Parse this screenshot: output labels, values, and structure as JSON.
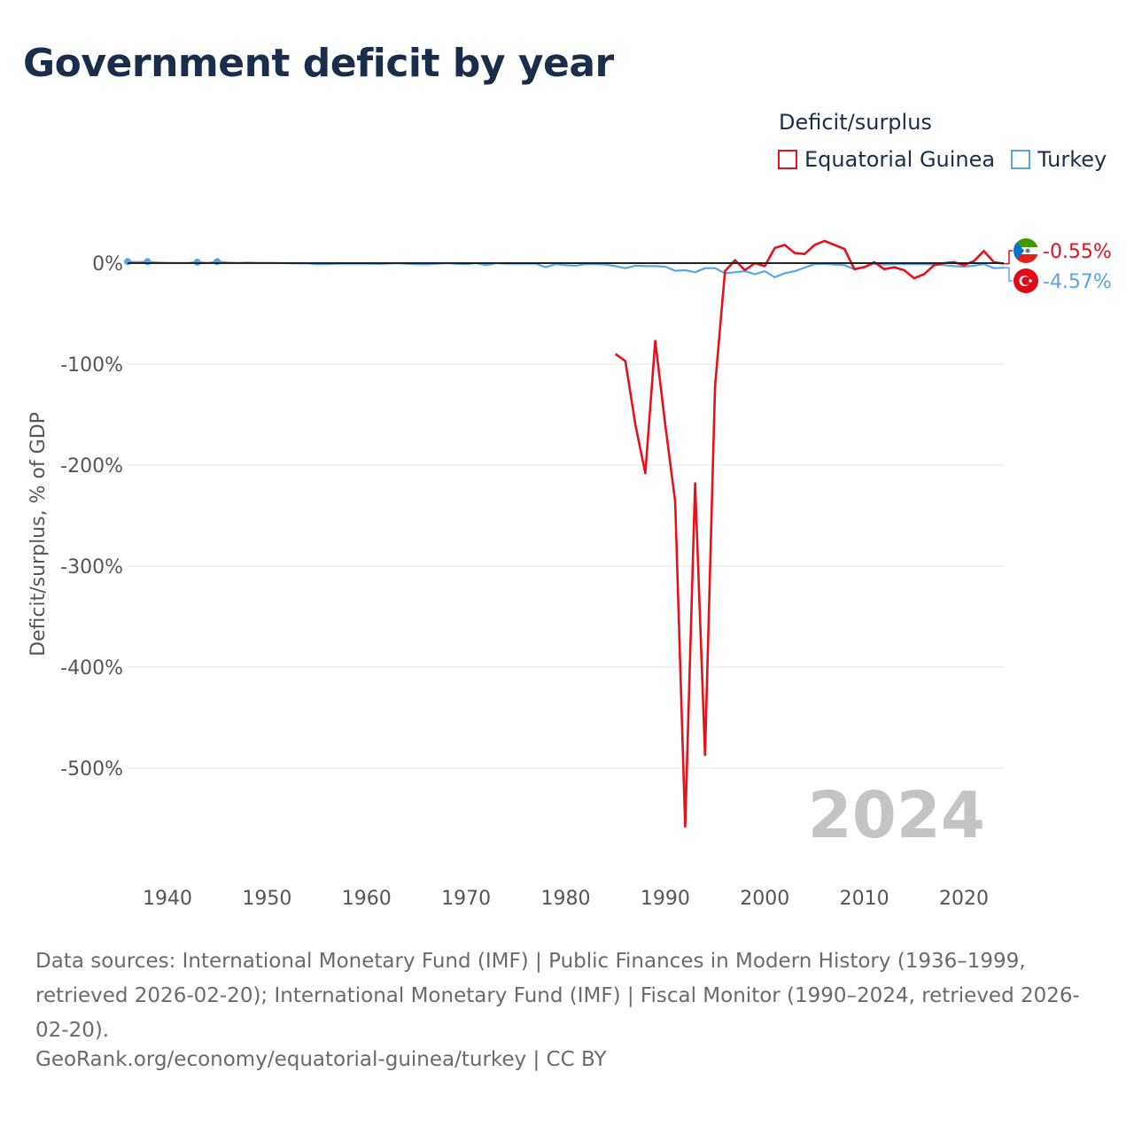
{
  "title": "Government deficit by year",
  "legend": {
    "title": "Deficit/surplus",
    "items": [
      {
        "label": "Equatorial Guinea",
        "color": "#e8101a"
      },
      {
        "label": "Turkey",
        "color": "#5aa5e8"
      }
    ]
  },
  "sources_text": "Data sources: International Monetary Fund (IMF) | Public Finances in Modern History (1936–1999, retrieved 2026-02-20); International Monetary Fund (IMF) | Fiscal Monitor (1990–2024, retrieved 2026-02-20).",
  "site_text": "GeoRank.org/economy/equatorial-guinea/turkey | CC BY",
  "chart_data": {
    "type": "line",
    "title": "Government deficit by year",
    "xlabel": "",
    "ylabel": "Deficit/surplus, % of GDP",
    "xlim": [
      1936,
      2024
    ],
    "ylim": [
      -600,
      30
    ],
    "x_ticks": [
      1940,
      1950,
      1960,
      1970,
      1980,
      1990,
      2000,
      2010,
      2020
    ],
    "y_ticks": [
      0,
      -100,
      -200,
      -300,
      -400,
      -500
    ],
    "y_tick_labels": [
      "0%",
      "-100%",
      "-200%",
      "-300%",
      "-400%",
      "-500%"
    ],
    "grid": true,
    "legend_position": "top-right",
    "current_year_label": "2024",
    "series": [
      {
        "name": "Equatorial Guinea",
        "color": "#e8101a",
        "end_label": "-0.55%",
        "x": [
          1985,
          1986,
          1987,
          1988,
          1989,
          1990,
          1991,
          1992,
          1993,
          1994,
          1995,
          1996,
          1997,
          1998,
          1999,
          2000,
          2001,
          2002,
          2003,
          2004,
          2005,
          2006,
          2007,
          2008,
          2009,
          2010,
          2011,
          2012,
          2013,
          2014,
          2015,
          2016,
          2017,
          2018,
          2019,
          2020,
          2021,
          2022,
          2023,
          2024
        ],
        "y": [
          -90,
          -97,
          -160,
          -208,
          -77,
          -160,
          -236,
          -558,
          -218,
          -487,
          -122,
          -8,
          3,
          -7,
          0,
          -3,
          15,
          18,
          10,
          9,
          18,
          22,
          18,
          14,
          -6,
          -4,
          1,
          -6,
          -4,
          -7,
          -15,
          -11,
          -2,
          0,
          1,
          -2,
          2,
          12,
          1,
          -0.55
        ]
      },
      {
        "name": "Turkey",
        "color": "#5aa5e8",
        "end_label": "-4.57%",
        "x": [
          1936,
          1937,
          1938,
          1939,
          1940,
          1941,
          1942,
          1943,
          1944,
          1945,
          1946,
          1947,
          1948,
          1949,
          1950,
          1951,
          1952,
          1953,
          1954,
          1955,
          1956,
          1957,
          1958,
          1959,
          1960,
          1961,
          1962,
          1963,
          1964,
          1965,
          1966,
          1967,
          1968,
          1969,
          1970,
          1971,
          1972,
          1973,
          1974,
          1975,
          1976,
          1977,
          1978,
          1979,
          1980,
          1981,
          1982,
          1983,
          1984,
          1985,
          1986,
          1987,
          1988,
          1989,
          1990,
          1991,
          1992,
          1993,
          1994,
          1995,
          1996,
          1997,
          1998,
          1999,
          2000,
          2001,
          2002,
          2003,
          2004,
          2005,
          2006,
          2007,
          2008,
          2009,
          2010,
          2011,
          2012,
          2013,
          2014,
          2015,
          2016,
          2017,
          2018,
          2019,
          2020,
          2021,
          2022,
          2023,
          2024
        ],
        "y": [
          1.5,
          1,
          1.5,
          0.5,
          0.3,
          0.2,
          0.1,
          1,
          0.2,
          1.5,
          0.5,
          0.2,
          0.5,
          0.3,
          0.3,
          0.2,
          0,
          -0.3,
          -0.3,
          -1,
          -1,
          -0.5,
          -0.5,
          -0.5,
          -0.5,
          -0.8,
          -0.5,
          0,
          -0.5,
          -1,
          -1.2,
          -0.5,
          0,
          -0.5,
          -1,
          0,
          -2,
          0,
          -0.5,
          -0.5,
          -0.5,
          -0.5,
          -4,
          -1,
          -2,
          -2.5,
          -1,
          -1,
          -1.5,
          -3,
          -5,
          -2.5,
          -3,
          -3,
          -3.5,
          -7.5,
          -7,
          -9,
          -5,
          -5,
          -10,
          -9,
          -8,
          -11,
          -8,
          -14,
          -10,
          -8,
          -4.5,
          -1,
          -0.5,
          -1.5,
          -2,
          -6,
          -3.5,
          -0.5,
          -1.5,
          -1,
          -1,
          -1,
          -1,
          -1.5,
          -2,
          -3,
          -3.5,
          -2.5,
          -1,
          -5,
          -4.57
        ]
      }
    ]
  }
}
